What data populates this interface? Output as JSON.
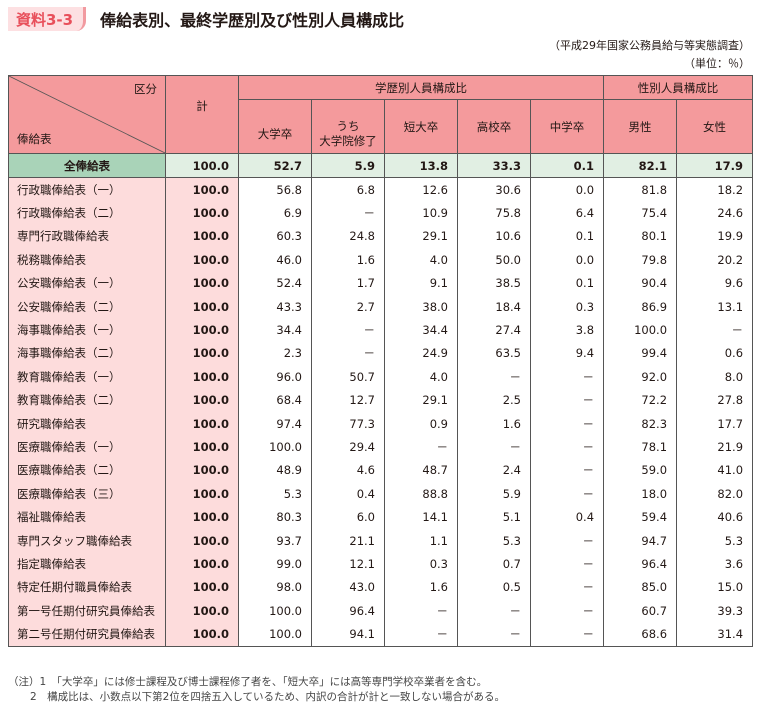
{
  "header": {
    "badge": "資料3-3",
    "title": "俸給表別、最終学歴別及び性別人員構成比",
    "source": "（平成29年国家公務員給与等実態調査）",
    "unit": "（単位：％）"
  },
  "table": {
    "corner_top": "区分",
    "corner_bottom": "俸給表",
    "total_label": "計",
    "group_education": "学歴別人員構成比",
    "group_gender": "性別人員構成比",
    "columns": {
      "univ": "大学卒",
      "grad_line1": "うち",
      "grad_line2": "大学院修了",
      "junior": "短大卒",
      "high": "高校卒",
      "middle": "中学卒",
      "male": "男性",
      "female": "女性"
    },
    "rows": [
      {
        "label": "全俸給表",
        "total": "100.0",
        "univ": "52.7",
        "grad": "5.9",
        "junior": "13.8",
        "high": "33.3",
        "middle": "0.1",
        "male": "82.1",
        "female": "17.9"
      },
      {
        "label": "行政職俸給表（一）",
        "total": "100.0",
        "univ": "56.8",
        "grad": "6.8",
        "junior": "12.6",
        "high": "30.6",
        "middle": "0.0",
        "male": "81.8",
        "female": "18.2"
      },
      {
        "label": "行政職俸給表（二）",
        "total": "100.0",
        "univ": "6.9",
        "grad": "－",
        "junior": "10.9",
        "high": "75.8",
        "middle": "6.4",
        "male": "75.4",
        "female": "24.6"
      },
      {
        "label": "専門行政職俸給表",
        "total": "100.0",
        "univ": "60.3",
        "grad": "24.8",
        "junior": "29.1",
        "high": "10.6",
        "middle": "0.1",
        "male": "80.1",
        "female": "19.9"
      },
      {
        "label": "税務職俸給表",
        "total": "100.0",
        "univ": "46.0",
        "grad": "1.6",
        "junior": "4.0",
        "high": "50.0",
        "middle": "0.0",
        "male": "79.8",
        "female": "20.2"
      },
      {
        "label": "公安職俸給表（一）",
        "total": "100.0",
        "univ": "52.4",
        "grad": "1.7",
        "junior": "9.1",
        "high": "38.5",
        "middle": "0.1",
        "male": "90.4",
        "female": "9.6"
      },
      {
        "label": "公安職俸給表（二）",
        "total": "100.0",
        "univ": "43.3",
        "grad": "2.7",
        "junior": "38.0",
        "high": "18.4",
        "middle": "0.3",
        "male": "86.9",
        "female": "13.1"
      },
      {
        "label": "海事職俸給表（一）",
        "total": "100.0",
        "univ": "34.4",
        "grad": "－",
        "junior": "34.4",
        "high": "27.4",
        "middle": "3.8",
        "male": "100.0",
        "female": "－"
      },
      {
        "label": "海事職俸給表（二）",
        "total": "100.0",
        "univ": "2.3",
        "grad": "－",
        "junior": "24.9",
        "high": "63.5",
        "middle": "9.4",
        "male": "99.4",
        "female": "0.6"
      },
      {
        "label": "教育職俸給表（一）",
        "total": "100.0",
        "univ": "96.0",
        "grad": "50.7",
        "junior": "4.0",
        "high": "－",
        "middle": "－",
        "male": "92.0",
        "female": "8.0"
      },
      {
        "label": "教育職俸給表（二）",
        "total": "100.0",
        "univ": "68.4",
        "grad": "12.7",
        "junior": "29.1",
        "high": "2.5",
        "middle": "－",
        "male": "72.2",
        "female": "27.8"
      },
      {
        "label": "研究職俸給表",
        "total": "100.0",
        "univ": "97.4",
        "grad": "77.3",
        "junior": "0.9",
        "high": "1.6",
        "middle": "－",
        "male": "82.3",
        "female": "17.7"
      },
      {
        "label": "医療職俸給表（一）",
        "total": "100.0",
        "univ": "100.0",
        "grad": "29.4",
        "junior": "－",
        "high": "－",
        "middle": "－",
        "male": "78.1",
        "female": "21.9"
      },
      {
        "label": "医療職俸給表（二）",
        "total": "100.0",
        "univ": "48.9",
        "grad": "4.6",
        "junior": "48.7",
        "high": "2.4",
        "middle": "－",
        "male": "59.0",
        "female": "41.0"
      },
      {
        "label": "医療職俸給表（三）",
        "total": "100.0",
        "univ": "5.3",
        "grad": "0.4",
        "junior": "88.8",
        "high": "5.9",
        "middle": "－",
        "male": "18.0",
        "female": "82.0"
      },
      {
        "label": "福祉職俸給表",
        "total": "100.0",
        "univ": "80.3",
        "grad": "6.0",
        "junior": "14.1",
        "high": "5.1",
        "middle": "0.4",
        "male": "59.4",
        "female": "40.6"
      },
      {
        "label": "専門スタッフ職俸給表",
        "total": "100.0",
        "univ": "93.7",
        "grad": "21.1",
        "junior": "1.1",
        "high": "5.3",
        "middle": "－",
        "male": "94.7",
        "female": "5.3"
      },
      {
        "label": "指定職俸給表",
        "total": "100.0",
        "univ": "99.0",
        "grad": "12.1",
        "junior": "0.3",
        "high": "0.7",
        "middle": "－",
        "male": "96.4",
        "female": "3.6"
      },
      {
        "label": "特定任期付職員俸給表",
        "total": "100.0",
        "univ": "98.0",
        "grad": "43.0",
        "junior": "1.6",
        "high": "0.5",
        "middle": "－",
        "male": "85.0",
        "female": "15.0"
      },
      {
        "label": "第一号任期付研究員俸給表",
        "total": "100.0",
        "univ": "100.0",
        "grad": "96.4",
        "junior": "－",
        "high": "－",
        "middle": "－",
        "male": "60.7",
        "female": "39.3"
      },
      {
        "label": "第二号任期付研究員俸給表",
        "total": "100.0",
        "univ": "100.0",
        "grad": "94.1",
        "junior": "－",
        "high": "－",
        "middle": "－",
        "male": "68.6",
        "female": "31.4"
      }
    ]
  },
  "notes": {
    "line1": "（注）1　「大学卒」には修士課程及び博士課程修了者を、「短大卒」には高等専門学校卒業者を含む。",
    "line2": "2　構成比は、小数点以下第2位を四捨五入しているため、内訳の合計が計と一致しない場合がある。"
  },
  "colors": {
    "header_pink": "#f49a9c",
    "row_label_pink": "#fddcdc",
    "total_row_green": "#e1efe3",
    "total_label_green": "#a9d3b8",
    "badge_text": "#e8505b",
    "badge_bg": "#fde0e2"
  }
}
